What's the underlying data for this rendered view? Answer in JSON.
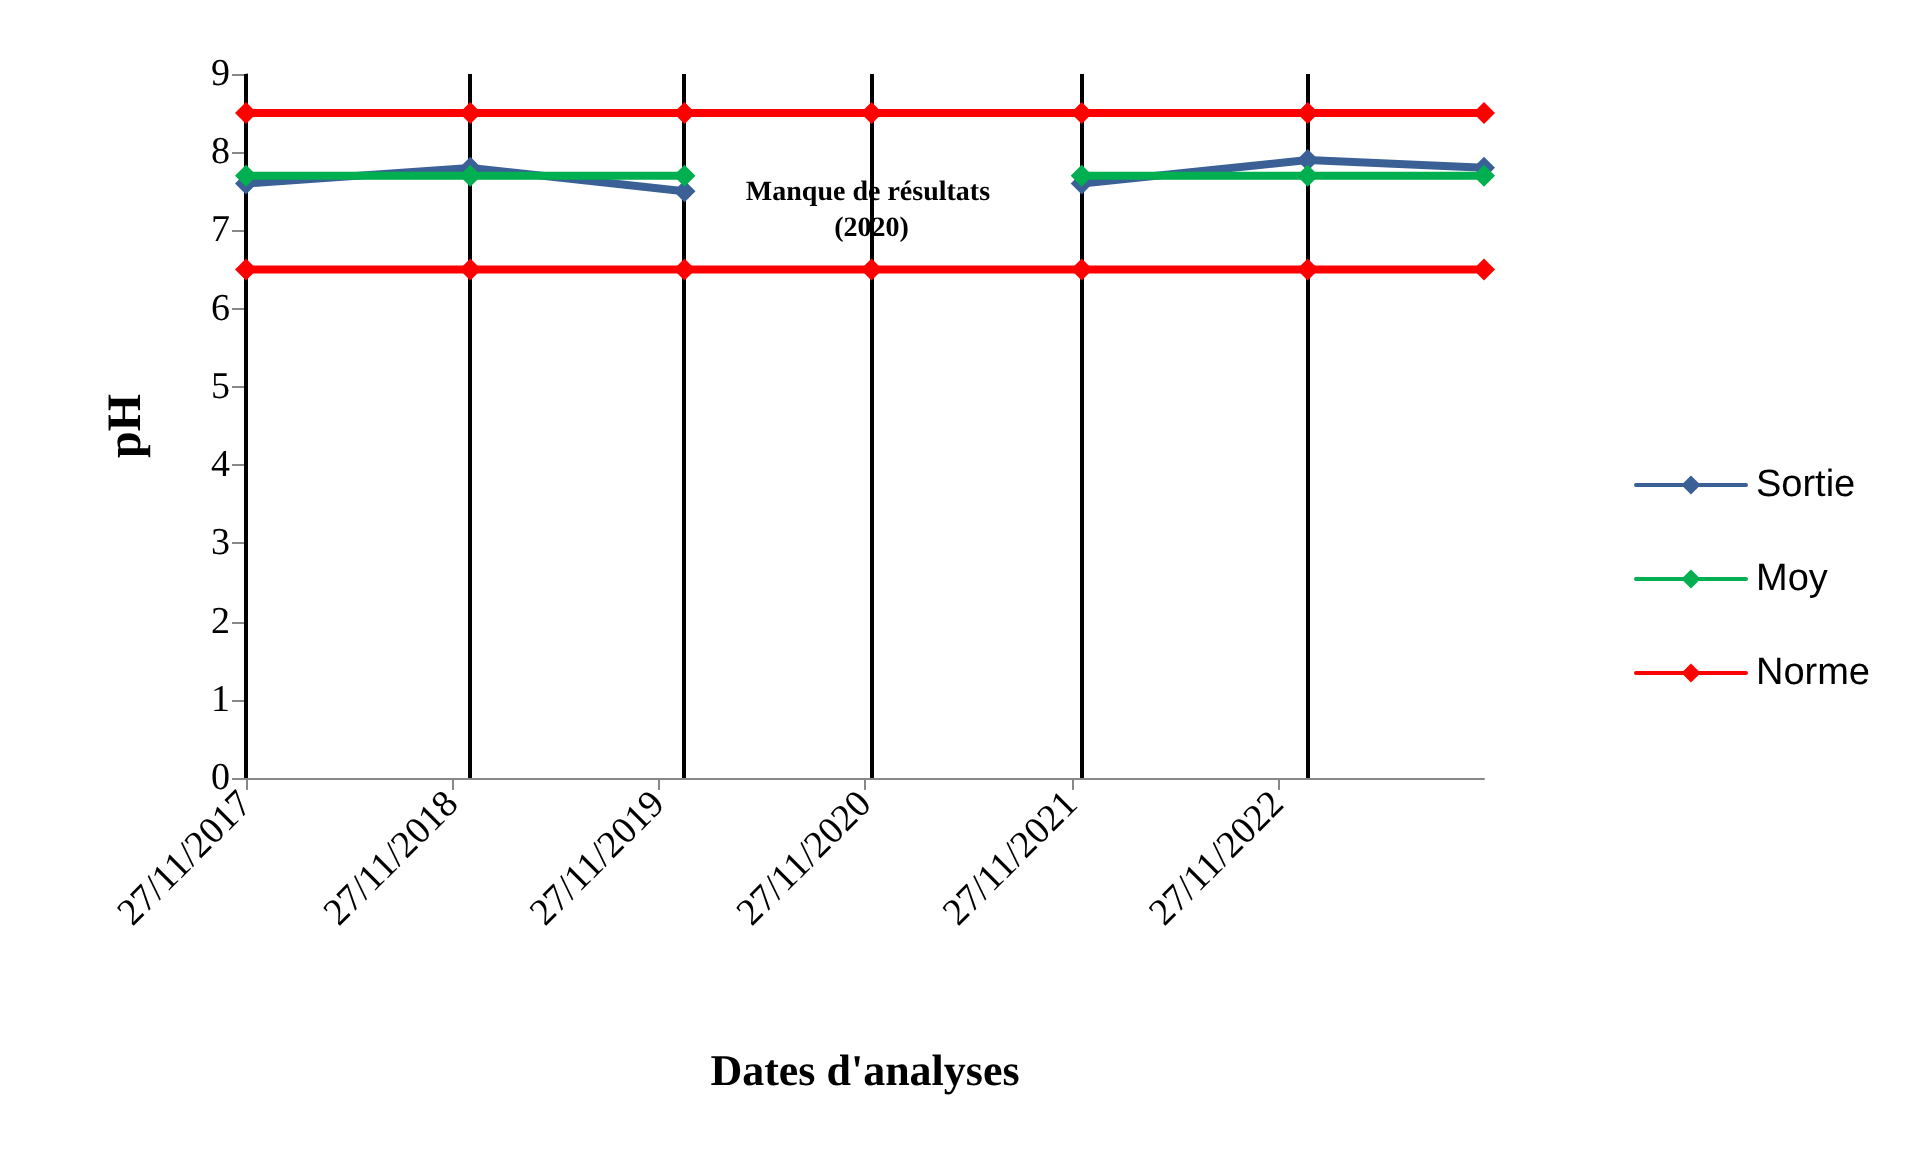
{
  "chart_data": {
    "type": "line",
    "xlabel": "Dates d'analyses",
    "ylabel": "pH",
    "x": [
      "2017-11-27",
      "2018-12-29",
      "2020-01-12",
      "2020-12-08",
      "2021-12-15",
      "2023-01-19",
      "2023-11-27"
    ],
    "series": [
      {
        "name": "Sortie",
        "color": "#3a6096",
        "values": [
          7.6,
          7.8,
          7.5,
          null,
          7.6,
          7.9,
          7.8
        ]
      },
      {
        "name": "Moy",
        "color": "#00b050",
        "values": [
          7.7,
          7.7,
          7.7,
          null,
          7.7,
          7.7,
          7.7
        ]
      },
      {
        "name": "Norme",
        "color": "#ff0000",
        "values": [
          8.5,
          8.5,
          8.5,
          8.5,
          8.5,
          8.5,
          8.5
        ]
      },
      {
        "color": "#ff0000",
        "values": [
          6.5,
          6.5,
          6.5,
          6.5,
          6.5,
          6.5,
          6.5
        ]
      }
    ],
    "xlim": [
      "2017-11-27",
      "2023-11-27"
    ],
    "xticks": [
      {
        "value": "2017-11-27",
        "label": "27/11/2017"
      },
      {
        "value": "2018-11-27",
        "label": "27/11/2018"
      },
      {
        "value": "2019-11-27",
        "label": "27/11/2019"
      },
      {
        "value": "2020-11-27",
        "label": "27/11/2020"
      },
      {
        "value": "2021-11-27",
        "label": "27/11/2021"
      },
      {
        "value": "2022-11-27",
        "label": "27/11/2022"
      }
    ],
    "ylim": [
      0,
      9
    ],
    "yticks": [
      0,
      1,
      2,
      3,
      4,
      5,
      6,
      7,
      8,
      9
    ],
    "ref_lines": [
      {
        "axis": "x",
        "value": "2017-11-27",
        "color": "#000000"
      },
      {
        "axis": "x",
        "value": "2018-12-29",
        "color": "#000000"
      },
      {
        "axis": "x",
        "value": "2020-01-12",
        "color": "#000000"
      },
      {
        "axis": "x",
        "value": "2020-12-08",
        "color": "#000000"
      },
      {
        "axis": "x",
        "value": "2021-12-15",
        "color": "#000000"
      },
      {
        "axis": "x",
        "value": "2023-01-19",
        "color": "#000000"
      }
    ],
    "annotations": [
      {
        "text": "Manque de résultats (2020)",
        "x": "2020-12-08",
        "y": 7.4
      }
    ],
    "grid": false,
    "legend": "right",
    "marker": "diamond",
    "line_style": "solid"
  }
}
